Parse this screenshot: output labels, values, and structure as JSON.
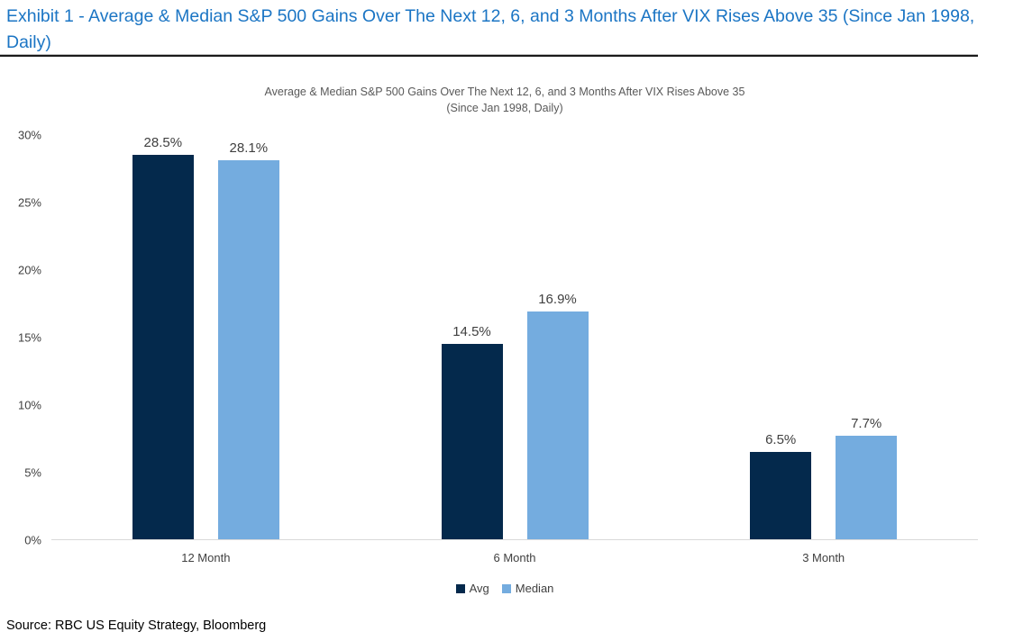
{
  "page": {
    "exhibit_title": "Exhibit 1 - Average & Median S&P 500 Gains Over The Next 12, 6, and 3 Months After VIX Rises Above 35 (Since Jan 1998, Daily)",
    "source": "Source: RBC US Equity Strategy, Bloomberg"
  },
  "colors": {
    "title_blue": "#1b75c4",
    "avg_navy": "#04294c",
    "median_light_blue": "#74acdf",
    "axis_line": "#d9d9d9",
    "tick_text": "#404040",
    "chart_title_gray": "#595959"
  },
  "chart_data": {
    "type": "bar",
    "title": "Average & Median S&P 500 Gains Over The Next 12, 6, and 3 Months After VIX Rises Above 35",
    "subtitle": "(Since Jan 1998, Daily)",
    "categories": [
      "12 Month",
      "6 Month",
      "3 Month"
    ],
    "series": [
      {
        "name": "Avg",
        "color": "#04294c",
        "values": [
          28.5,
          14.5,
          6.5
        ],
        "labels": [
          "28.5%",
          "14.5%",
          "6.5%"
        ]
      },
      {
        "name": "Median",
        "color": "#74acdf",
        "values": [
          28.1,
          16.9,
          7.7
        ],
        "labels": [
          "28.1%",
          "16.9%",
          "7.7%"
        ]
      }
    ],
    "xlabel": "",
    "ylabel": "",
    "ylim": [
      0,
      30
    ],
    "yticks": [
      "0%",
      "5%",
      "10%",
      "15%",
      "20%",
      "25%",
      "30%"
    ],
    "grid": false,
    "legend_position": "bottom"
  }
}
